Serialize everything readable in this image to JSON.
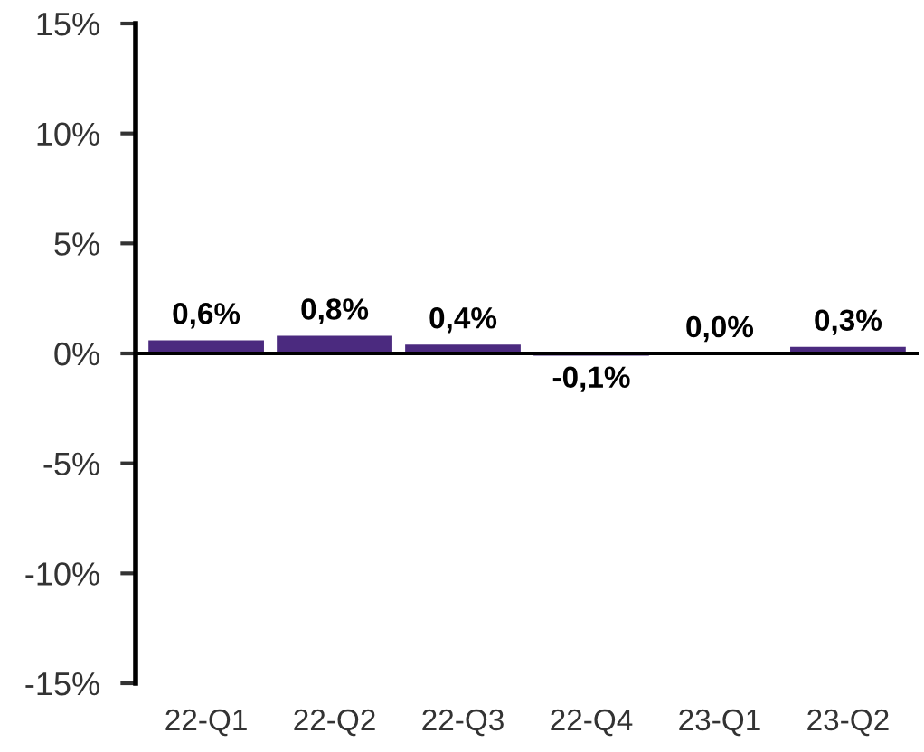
{
  "chart_data": {
    "type": "bar",
    "categories": [
      "22-Q1",
      "22-Q2",
      "22-Q3",
      "22-Q4",
      "23-Q1",
      "23-Q2"
    ],
    "values": [
      0.6,
      0.8,
      0.4,
      -0.1,
      0.0,
      0.3
    ],
    "value_labels": [
      "0,6%",
      "0,8%",
      "0,4%",
      "-0,1%",
      "0,0%",
      "0,3%"
    ],
    "color": "#4b2a7f",
    "ylim": [
      -15,
      15
    ],
    "yticks": [
      {
        "value": -15,
        "label": "-15%"
      },
      {
        "value": -10,
        "label": "-10%"
      },
      {
        "value": -5,
        "label": "-5%"
      },
      {
        "value": 0,
        "label": "0%"
      },
      {
        "value": 5,
        "label": "5%"
      },
      {
        "value": 10,
        "label": "10%"
      },
      {
        "value": 15,
        "label": "15%"
      }
    ],
    "legend": false
  }
}
